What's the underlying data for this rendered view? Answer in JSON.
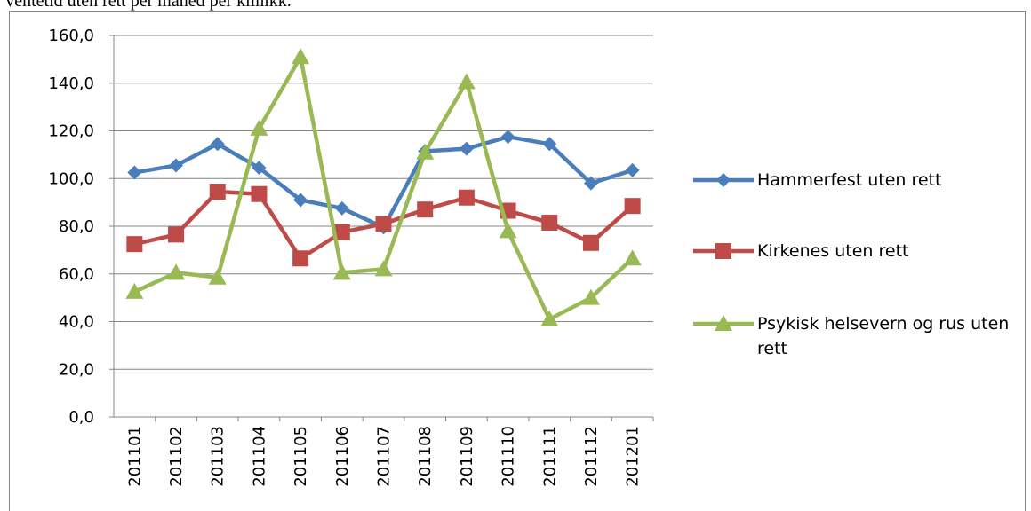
{
  "chart_data": {
    "type": "line",
    "title": "Ventetid uten rett per måned per klinikk.",
    "categories": [
      "201101",
      "201102",
      "201103",
      "201104",
      "201105",
      "201106",
      "201107",
      "201108",
      "201109",
      "201110",
      "201111",
      "201112",
      "201201"
    ],
    "series": [
      {
        "name": "Hammerfest uten rett",
        "color": "#4a7ebb",
        "marker": "diamond",
        "values": [
          102.5,
          105.5,
          114.5,
          104.5,
          91,
          87.5,
          79.5,
          111.5,
          112.5,
          117.5,
          114.5,
          98,
          103.5
        ]
      },
      {
        "name": "Kirkenes uten rett",
        "color": "#be4b48",
        "marker": "square",
        "values": [
          72.5,
          76.5,
          94.5,
          93.5,
          66.5,
          77.5,
          81,
          87,
          92,
          86.5,
          81.5,
          73,
          88.5
        ]
      },
      {
        "name": "Psykisk helsevern og rus uten rett",
        "color": "#98b954",
        "marker": "triangle",
        "values": [
          52.5,
          60.5,
          58.5,
          121,
          151,
          60.5,
          62,
          111,
          140.5,
          78,
          41,
          50,
          66.5
        ]
      }
    ],
    "ylim": [
      0,
      160
    ],
    "yticks": [
      {
        "value": 0,
        "label": "0,0"
      },
      {
        "value": 20,
        "label": "20,0"
      },
      {
        "value": 40,
        "label": "40,0"
      },
      {
        "value": 60,
        "label": "60,0"
      },
      {
        "value": 80,
        "label": "80,0"
      },
      {
        "value": 100,
        "label": "100,0"
      },
      {
        "value": 120,
        "label": "120,0"
      },
      {
        "value": 140,
        "label": "140,0"
      },
      {
        "value": 160,
        "label": "160,0"
      }
    ],
    "grid": true,
    "legend": "right"
  }
}
